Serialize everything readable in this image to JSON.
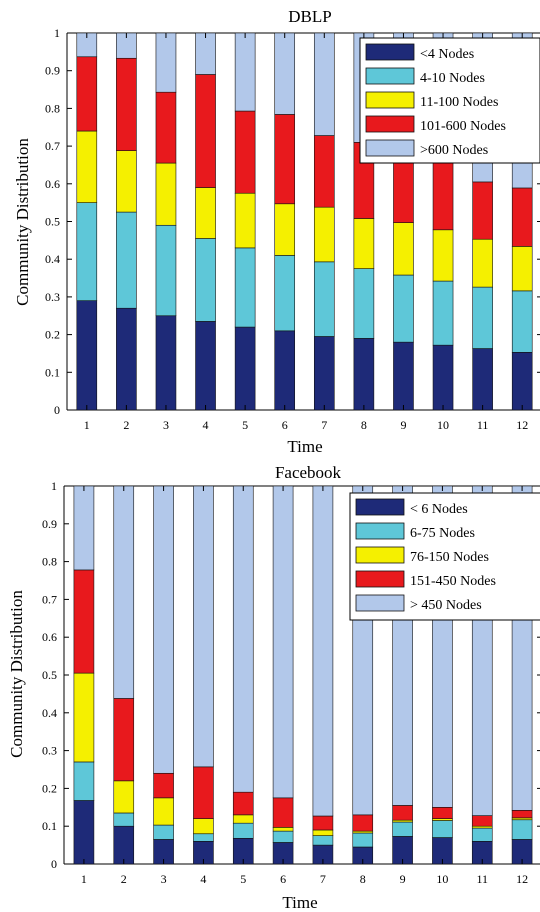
{
  "chart_data": [
    {
      "type": "bar",
      "stacked": true,
      "title": "DBLP",
      "xlabel": "Time",
      "ylabel": "Community Distribution",
      "ylim": [
        0,
        1
      ],
      "yticks": [
        "0",
        "0.1",
        "0.2",
        "0.3",
        "0.4",
        "0.5",
        "0.6",
        "0.7",
        "0.8",
        "0.9",
        "1"
      ],
      "categories": [
        "1",
        "2",
        "3",
        "4",
        "5",
        "6",
        "7",
        "8",
        "9",
        "10",
        "11",
        "12"
      ],
      "legend_position": "top-right",
      "series": [
        {
          "name": "<4 Nodes",
          "color": "#1e2a78",
          "values": [
            0.29,
            0.27,
            0.25,
            0.235,
            0.22,
            0.21,
            0.195,
            0.19,
            0.18,
            0.172,
            0.163,
            0.153
          ]
        },
        {
          "name": "4-10 Nodes",
          "color": "#5ec7d8",
          "values": [
            0.26,
            0.255,
            0.24,
            0.22,
            0.21,
            0.2,
            0.198,
            0.185,
            0.178,
            0.17,
            0.163,
            0.163
          ]
        },
        {
          "name": "11-100 Nodes",
          "color": "#f5f000",
          "values": [
            0.19,
            0.163,
            0.165,
            0.135,
            0.145,
            0.137,
            0.145,
            0.133,
            0.139,
            0.136,
            0.127,
            0.118
          ]
        },
        {
          "name": "101-600 Nodes",
          "color": "#e8191d",
          "values": [
            0.197,
            0.245,
            0.188,
            0.3,
            0.218,
            0.237,
            0.19,
            0.202,
            0.178,
            0.177,
            0.152,
            0.155
          ]
        },
        {
          "name": ">600 Nodes",
          "color": "#b2c8ea",
          "values": [
            0.063,
            0.067,
            0.157,
            0.11,
            0.207,
            0.216,
            0.272,
            0.29,
            0.325,
            0.345,
            0.395,
            0.411
          ]
        }
      ]
    },
    {
      "type": "bar",
      "stacked": true,
      "title": "Facebook",
      "xlabel": "Time",
      "ylabel": "Community Distribution",
      "ylim": [
        0,
        1
      ],
      "yticks": [
        "0",
        "0.1",
        "0.2",
        "0.3",
        "0.4",
        "0.5",
        "0.6",
        "0.7",
        "0.8",
        "0.9",
        "1"
      ],
      "categories": [
        "1",
        "2",
        "3",
        "4",
        "5",
        "6",
        "7",
        "8",
        "9",
        "10",
        "11",
        "12"
      ],
      "legend_position": "top-right",
      "series": [
        {
          "name": "< 6 Nodes",
          "color": "#1e2a78",
          "values": [
            0.168,
            0.1,
            0.065,
            0.06,
            0.068,
            0.057,
            0.05,
            0.045,
            0.073,
            0.07,
            0.06,
            0.065
          ]
        },
        {
          "name": "6-75 Nodes",
          "color": "#5ec7d8",
          "values": [
            0.102,
            0.035,
            0.038,
            0.02,
            0.04,
            0.03,
            0.025,
            0.037,
            0.038,
            0.045,
            0.035,
            0.052
          ]
        },
        {
          "name": "76-150 Nodes",
          "color": "#f5f000",
          "values": [
            0.235,
            0.085,
            0.072,
            0.04,
            0.022,
            0.01,
            0.015,
            0.005,
            0.005,
            0.005,
            0.005,
            0.005
          ]
        },
        {
          "name": "151-450 Nodes",
          "color": "#e8191d",
          "values": [
            0.273,
            0.218,
            0.065,
            0.137,
            0.06,
            0.078,
            0.037,
            0.043,
            0.039,
            0.03,
            0.028,
            0.02
          ]
        },
        {
          "name": "> 450 Nodes",
          "color": "#b2c8ea",
          "values": [
            0.222,
            0.562,
            0.76,
            0.743,
            0.81,
            0.825,
            0.873,
            0.87,
            0.845,
            0.85,
            0.872,
            0.858
          ]
        }
      ]
    }
  ]
}
